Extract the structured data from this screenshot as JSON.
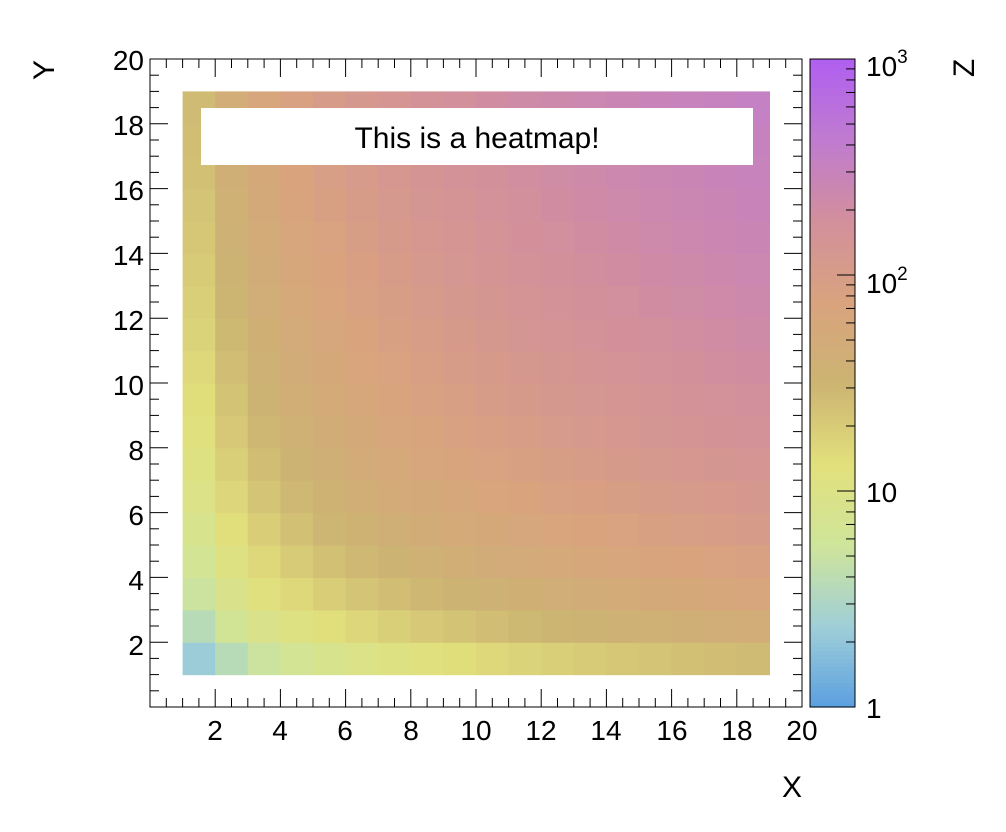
{
  "chart_data": {
    "type": "heatmap",
    "title": "This is a heatmap!",
    "xlabel": "X",
    "ylabel": "Y",
    "zlabel": "Z",
    "xlim": [
      0,
      20
    ],
    "ylim": [
      0,
      20
    ],
    "zlim": [
      1,
      1000
    ],
    "z_scale": "log",
    "x_ticks": [
      "2",
      "4",
      "6",
      "8",
      "10",
      "12",
      "14",
      "16",
      "18",
      "20"
    ],
    "y_ticks": [
      "2",
      "4",
      "6",
      "8",
      "10",
      "12",
      "14",
      "16",
      "18",
      "20"
    ],
    "z_ticks": [
      {
        "value": 1,
        "base": "1",
        "exp": ""
      },
      {
        "value": 10,
        "base": "10",
        "exp": ""
      },
      {
        "value": 100,
        "base": "10",
        "exp": "2"
      },
      {
        "value": 1000,
        "base": "10",
        "exp": "3"
      }
    ],
    "x_bins": [
      1,
      19
    ],
    "y_bins": [
      1,
      19
    ],
    "n_bins": 18,
    "cell_formula": "z = (i+0.5)*(j+0.5) for bin i,j (1..18)",
    "colorscale": [
      "#5b9fe0",
      "#9fcfd8",
      "#cfe59a",
      "#e2e07c",
      "#ccb472",
      "#d9a37e",
      "#d28f9c",
      "#c07ccf",
      "#b05ff0"
    ],
    "grid": false,
    "legend": "none"
  }
}
